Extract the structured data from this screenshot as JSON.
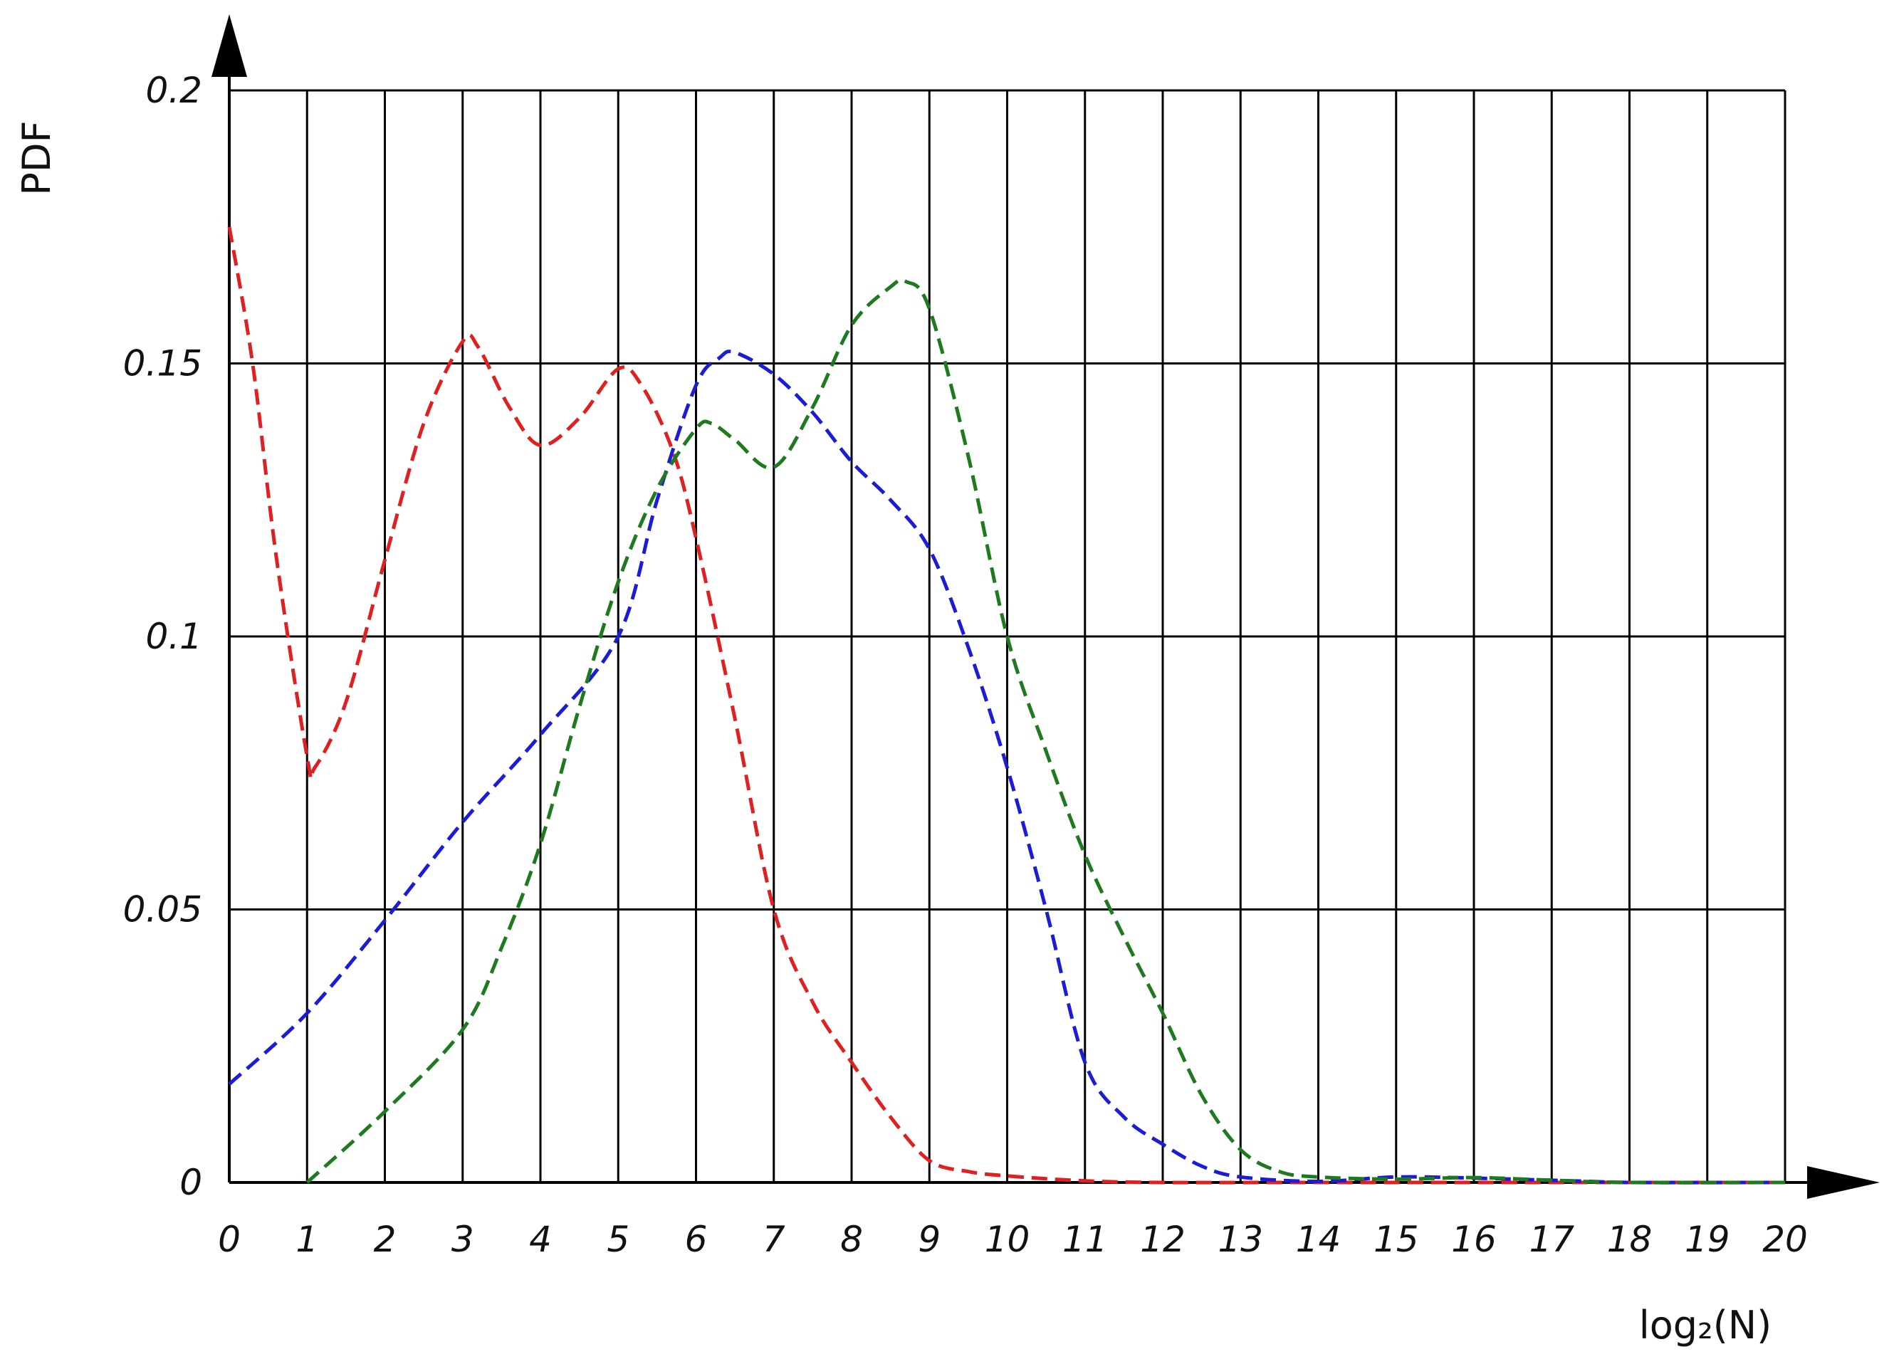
{
  "chart_data": {
    "type": "line",
    "xlabel": "log₂(N)",
    "ylabel": "PDF",
    "xlim": [
      0,
      20
    ],
    "ylim": [
      0,
      0.2
    ],
    "grid": true,
    "x_ticks": [
      "0",
      "1",
      "2",
      "3",
      "4",
      "5",
      "6",
      "7",
      "8",
      "9",
      "10",
      "11",
      "12",
      "13",
      "14",
      "15",
      "16",
      "17",
      "18",
      "19",
      "20"
    ],
    "y_ticks": [
      "0",
      "0.05",
      "0.1",
      "0.15",
      "0.2"
    ],
    "series": [
      {
        "color": "#e02020",
        "style": "dashed",
        "x": [
          0,
          0.3,
          0.6,
          1.0,
          1.1,
          1.5,
          2.0,
          2.5,
          3.0,
          3.2,
          3.6,
          4.0,
          4.5,
          5.0,
          5.3,
          5.7,
          6.0,
          6.5,
          7.0,
          7.5,
          8.0,
          8.5,
          9.0,
          9.5,
          10.0,
          11.0,
          12.0,
          14.0,
          20.0
        ],
        "y": [
          0.175,
          0.15,
          0.115,
          0.078,
          0.076,
          0.088,
          0.114,
          0.139,
          0.154,
          0.153,
          0.142,
          0.135,
          0.14,
          0.149,
          0.146,
          0.134,
          0.118,
          0.085,
          0.05,
          0.033,
          0.022,
          0.012,
          0.004,
          0.002,
          0.0012,
          0.0003,
          0.0,
          0.0,
          0.0
        ]
      },
      {
        "color": "#1c1cd6",
        "style": "dashed",
        "x": [
          0,
          1,
          2,
          3,
          4,
          5,
          5.5,
          6.0,
          6.3,
          6.5,
          7.0,
          7.5,
          8.0,
          8.5,
          9.0,
          9.5,
          10.0,
          10.5,
          11.0,
          11.5,
          12.0,
          12.5,
          13.0,
          14.0,
          15.0,
          16.0,
          17.0,
          17.5,
          18.0,
          20.0
        ],
        "y": [
          0.018,
          0.031,
          0.048,
          0.066,
          0.082,
          0.1,
          0.125,
          0.146,
          0.151,
          0.152,
          0.148,
          0.141,
          0.132,
          0.125,
          0.116,
          0.098,
          0.076,
          0.05,
          0.022,
          0.012,
          0.007,
          0.003,
          0.001,
          0.0002,
          0.001,
          0.0008,
          0.0004,
          0.0002,
          0.0,
          0.0
        ]
      },
      {
        "color": "#1e7a1e",
        "style": "dashed",
        "x": [
          1,
          2,
          3,
          3.5,
          4,
          4.5,
          5,
          5.5,
          6.0,
          6.2,
          6.5,
          7.0,
          7.5,
          8.0,
          8.5,
          8.7,
          9.0,
          9.5,
          10.0,
          10.5,
          11.0,
          11.5,
          12.0,
          12.5,
          13.0,
          13.5,
          14.0,
          15.0,
          16.0,
          17.0,
          18.0,
          20.0
        ],
        "y": [
          0.0,
          0.013,
          0.028,
          0.043,
          0.062,
          0.087,
          0.11,
          0.127,
          0.138,
          0.139,
          0.136,
          0.131,
          0.142,
          0.157,
          0.164,
          0.165,
          0.16,
          0.133,
          0.1,
          0.079,
          0.06,
          0.045,
          0.031,
          0.016,
          0.006,
          0.002,
          0.001,
          0.0006,
          0.0009,
          0.0004,
          0.0,
          0.0
        ]
      }
    ]
  }
}
